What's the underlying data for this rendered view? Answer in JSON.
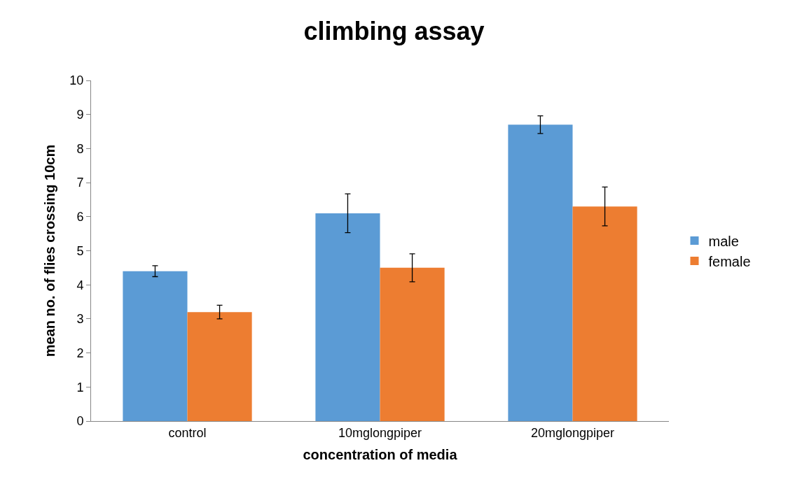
{
  "chart_data": {
    "type": "bar",
    "title": "climbing assay",
    "xlabel": "concentration of media",
    "ylabel": "mean no. of flies crossing 10cm",
    "categories": [
      "control",
      "10mglongpiper",
      "20mglongpiper"
    ],
    "series": [
      {
        "name": "male",
        "color": "#5b9bd5",
        "values": [
          4.4,
          6.1,
          8.7
        ],
        "errors": [
          0.16,
          0.57,
          0.26
        ]
      },
      {
        "name": "female",
        "color": "#ed7d31",
        "values": [
          3.2,
          4.5,
          6.3
        ],
        "errors": [
          0.2,
          0.41,
          0.57
        ]
      }
    ],
    "ylim": [
      0,
      10
    ],
    "yticks": [
      0,
      1,
      2,
      3,
      4,
      5,
      6,
      7,
      8,
      9,
      10
    ],
    "legend": "right"
  }
}
